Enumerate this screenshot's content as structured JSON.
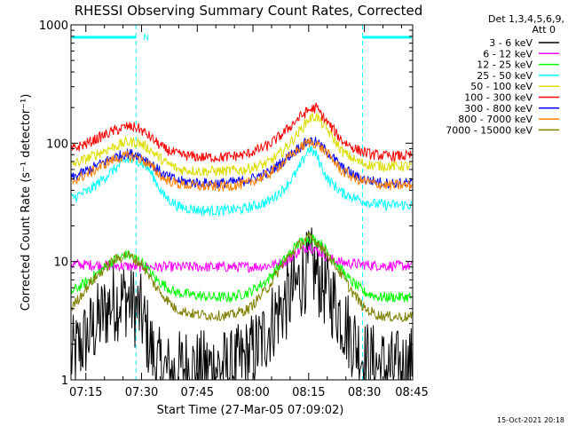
{
  "chart_data": {
    "type": "line",
    "title": "RHESSI Observing Summary Count Rates, Corrected",
    "xlabel": "Start Time (27-Mar-05 07:09:02)",
    "ylabel": "Corrected Count Rate (s⁻¹ detector⁻¹)",
    "ylim": [
      1,
      1000
    ],
    "yscale": "log",
    "xlim_minutes": [
      7.0,
      99.0
    ],
    "x_ticks": [
      {
        "label": "07:15",
        "t": 11
      },
      {
        "label": "07:30",
        "t": 26
      },
      {
        "label": "07:45",
        "t": 41
      },
      {
        "label": "08:00",
        "t": 56
      },
      {
        "label": "08:15",
        "t": 71
      },
      {
        "label": "08:30",
        "t": 86
      },
      {
        "label": "08:45",
        "t": 101
      }
    ],
    "y_ticks": [
      {
        "label": "1",
        "v": 1
      },
      {
        "label": "10",
        "v": 10
      },
      {
        "label": "100",
        "v": 100
      },
      {
        "label": "1000",
        "v": 1000
      }
    ],
    "detector_note_line1": "Det 1,3,4,5,6,9,",
    "detector_note_line2": "Att 0",
    "timestamp": "15-Oct-2021 20:18",
    "night_mark_label": "N",
    "night_intervals": [
      [
        7.0,
        24.5
      ],
      [
        85.5,
        99.0
      ]
    ],
    "legend_position": "top-right",
    "series": [
      {
        "name": "3 - 6 keV",
        "color": "#000000",
        "x": [
          7,
          14,
          18,
          22,
          26,
          30,
          34,
          38,
          42,
          46,
          50,
          54,
          58,
          62,
          66,
          70,
          72,
          74,
          78,
          82,
          86,
          90,
          94,
          98
        ],
        "y": [
          1.5,
          3.0,
          4.5,
          5.0,
          3.5,
          1.3,
          1.1,
          1.3,
          1.2,
          1.3,
          1.2,
          1.5,
          2.0,
          3.5,
          5.0,
          8.0,
          9.0,
          7.0,
          4.5,
          2.5,
          1.5,
          1.3,
          1.2,
          1.3
        ]
      },
      {
        "name": "6 - 12 keV",
        "color": "#ff00ff",
        "x": [
          7,
          15,
          20,
          25,
          30,
          35,
          40,
          45,
          50,
          55,
          60,
          65,
          68,
          71,
          74,
          77,
          80,
          84,
          88,
          92,
          98
        ],
        "y": [
          9.5,
          9.3,
          9.2,
          9.0,
          9.0,
          9.0,
          9.0,
          9.0,
          9.0,
          9.0,
          9.2,
          10.0,
          12.0,
          13.5,
          12.0,
          10.5,
          9.8,
          9.5,
          9.3,
          9.2,
          9.2
        ]
      },
      {
        "name": "12 - 25 keV",
        "color": "#00ff00",
        "x": [
          7,
          12,
          18,
          22,
          26,
          30,
          35,
          40,
          45,
          50,
          55,
          60,
          64,
          68,
          71,
          74,
          78,
          82,
          86,
          90,
          94,
          98
        ],
        "y": [
          5.5,
          7.0,
          10.0,
          11.5,
          10.0,
          7.0,
          5.5,
          5.2,
          5.0,
          5.0,
          5.5,
          7.0,
          10.0,
          14.0,
          16.0,
          14.5,
          10.0,
          7.0,
          5.5,
          5.0,
          5.0,
          5.0
        ]
      },
      {
        "name": "25 - 50 keV",
        "color": "#00ffff",
        "x": [
          7,
          12,
          18,
          22,
          25,
          28,
          32,
          36,
          42,
          48,
          54,
          60,
          64,
          68,
          71,
          73,
          76,
          80,
          84,
          88,
          92,
          98
        ],
        "y": [
          34,
          40,
          58,
          72,
          72,
          60,
          36,
          29,
          27,
          27,
          28,
          32,
          40,
          58,
          90,
          80,
          50,
          38,
          34,
          31,
          30,
          30
        ]
      },
      {
        "name": "50 - 100 keV",
        "color": "#dddd00",
        "x": [
          7,
          12,
          18,
          22,
          25,
          28,
          32,
          36,
          42,
          48,
          54,
          60,
          64,
          68,
          71,
          73,
          76,
          80,
          84,
          88,
          92,
          98
        ],
        "y": [
          65,
          76,
          92,
          102,
          102,
          90,
          70,
          60,
          58,
          58,
          60,
          68,
          85,
          120,
          160,
          170,
          130,
          85,
          70,
          65,
          64,
          64
        ]
      },
      {
        "name": "100 - 300 keV",
        "color": "#ff0000",
        "x": [
          7,
          12,
          18,
          22,
          25,
          28,
          32,
          36,
          42,
          48,
          54,
          60,
          64,
          68,
          71,
          73,
          76,
          80,
          84,
          88,
          92,
          98
        ],
        "y": [
          88,
          102,
          125,
          138,
          135,
          115,
          90,
          80,
          76,
          76,
          80,
          95,
          120,
          160,
          190,
          200,
          150,
          105,
          88,
          80,
          78,
          78
        ]
      },
      {
        "name": "300 - 800 keV",
        "color": "#0000ff",
        "x": [
          7,
          12,
          18,
          22,
          25,
          28,
          32,
          36,
          42,
          48,
          54,
          60,
          64,
          68,
          71,
          73,
          76,
          80,
          84,
          88,
          92,
          98
        ],
        "y": [
          50,
          60,
          75,
          82,
          80,
          70,
          54,
          48,
          46,
          46,
          48,
          56,
          70,
          90,
          105,
          102,
          85,
          62,
          52,
          48,
          46,
          46
        ]
      },
      {
        "name": "800 - 7000 keV",
        "color": "#ff8000",
        "x": [
          7,
          12,
          18,
          22,
          25,
          28,
          32,
          36,
          42,
          48,
          54,
          60,
          64,
          68,
          71,
          73,
          76,
          80,
          84,
          88,
          92,
          98
        ],
        "y": [
          47,
          56,
          72,
          78,
          76,
          66,
          50,
          45,
          43,
          43,
          45,
          54,
          68,
          88,
          102,
          100,
          82,
          58,
          49,
          46,
          44,
          44
        ]
      },
      {
        "name": "7000 - 15000 keV",
        "color": "#808000",
        "x": [
          7,
          12,
          18,
          22,
          26,
          30,
          35,
          40,
          45,
          50,
          55,
          60,
          64,
          68,
          71,
          74,
          78,
          82,
          86,
          90,
          94,
          98
        ],
        "y": [
          4.0,
          6.5,
          10.0,
          11.5,
          9.5,
          6.0,
          4.0,
          3.6,
          3.5,
          3.5,
          4.0,
          6.0,
          9.5,
          13.5,
          16.0,
          14.0,
          9.5,
          6.0,
          4.0,
          3.5,
          3.4,
          3.4
        ]
      }
    ]
  }
}
